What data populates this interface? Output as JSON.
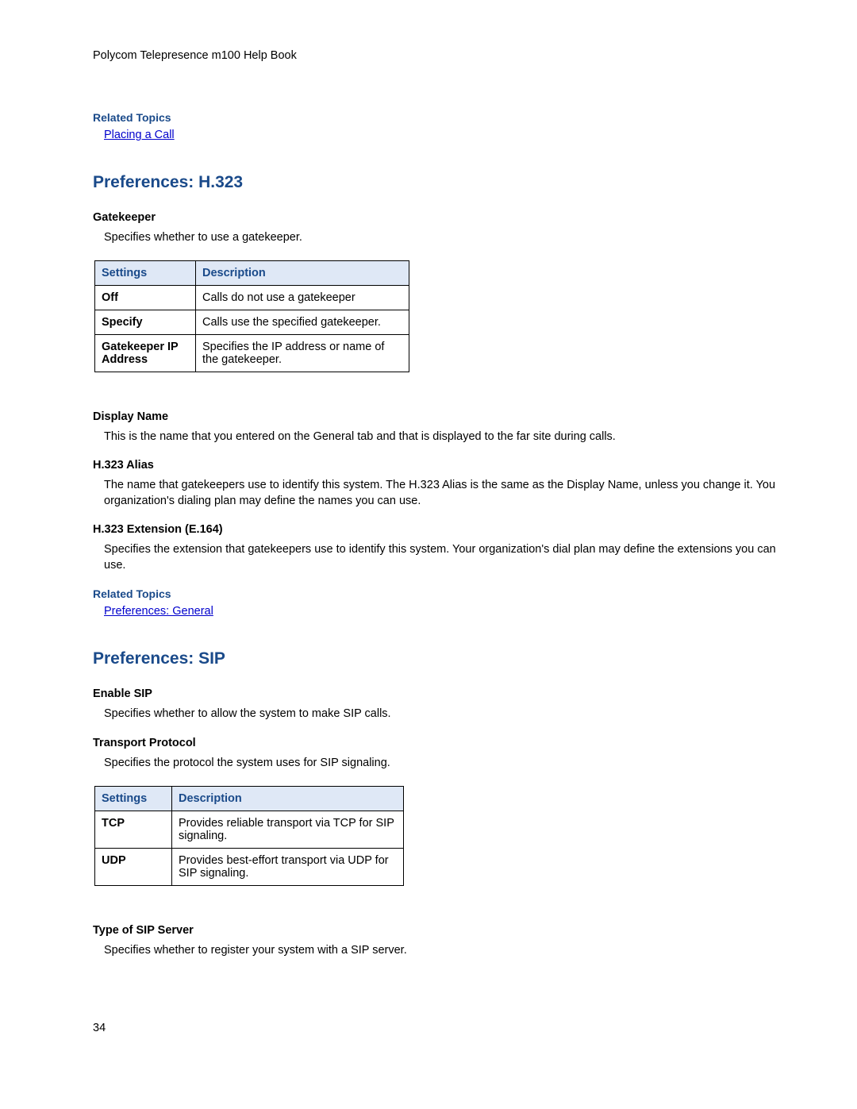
{
  "header": {
    "book_title": "Polycom Telepresence m100 Help Book"
  },
  "related_1": {
    "heading": "Related Topics",
    "link_text": "Placing a Call"
  },
  "h323": {
    "title": "Preferences: H.323",
    "gatekeeper": {
      "heading": "Gatekeeper",
      "text": "Specifies whether to use a gatekeeper."
    },
    "table": {
      "header_bg": "#dfe8f6",
      "border_color": "#000000",
      "col_settings": "Settings",
      "col_description": "Description",
      "rows": [
        {
          "setting": "Off",
          "desc": "Calls do not use a gatekeeper"
        },
        {
          "setting": "Specify",
          "desc": "Calls use the specified gatekeeper."
        },
        {
          "setting": "Gatekeeper IP Address",
          "desc": "Specifies the IP address or name of the gatekeeper."
        }
      ]
    },
    "display_name": {
      "heading": "Display Name",
      "text": "This is the name that you entered on the General tab and that is displayed to the far site during calls."
    },
    "alias": {
      "heading": "H.323 Alias",
      "text": "The name that gatekeepers use to identify this system.  The H.323 Alias is the same as the Display  Name, unless you change it. You organization's dialing plan may define the names you can use."
    },
    "extension": {
      "heading": "H.323 Extension (E.164)",
      "text": "Specifies the extension that gatekeepers use to identify this system. Your organization's dial plan may define the extensions you can use."
    }
  },
  "related_2": {
    "heading": "Related Topics",
    "link_text": "Preferences: General"
  },
  "sip": {
    "title": "Preferences: SIP",
    "enable": {
      "heading": "Enable SIP",
      "text": "Specifies whether to allow the system to make SIP calls."
    },
    "transport": {
      "heading": "Transport Protocol",
      "text": "Specifies the protocol the system uses for SIP signaling."
    },
    "table": {
      "header_bg": "#dfe8f6",
      "border_color": "#000000",
      "col_settings": "Settings",
      "col_description": "Description",
      "rows": [
        {
          "setting": "TCP",
          "desc": "Provides reliable transport via TCP for SIP signaling."
        },
        {
          "setting": "UDP",
          "desc": "Provides best-effort transport via UDP for SIP signaling."
        }
      ]
    },
    "server_type": {
      "heading": "Type of SIP Server",
      "text": "Specifies whether to register your system with a SIP server."
    }
  },
  "page_number": "34",
  "style": {
    "heading_color": "#1a4a8a",
    "link_color": "#0000cc",
    "body_font_size": 14.5,
    "h1_font_size": 21
  }
}
